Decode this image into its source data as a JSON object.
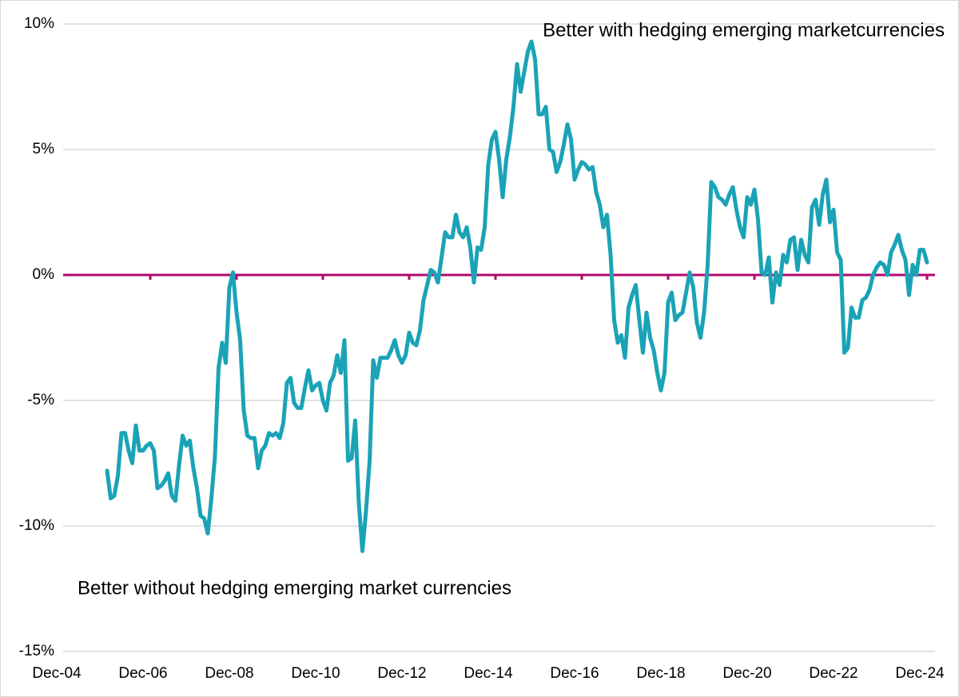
{
  "chart_data": {
    "type": "line",
    "annotations": [
      "Better with hedging emerging marketcurrencies",
      "Better without hedging emerging market currencies"
    ],
    "categories": [
      "Dec-04",
      null,
      null,
      null,
      null,
      null,
      null,
      null,
      null,
      null,
      null,
      null,
      null,
      null,
      null,
      null,
      null,
      null,
      null,
      null,
      null,
      null,
      null,
      null,
      "Dec-06",
      null,
      null,
      null,
      null,
      null,
      null,
      null,
      null,
      null,
      null,
      null,
      null,
      null,
      null,
      null,
      null,
      null,
      null,
      null,
      null,
      null,
      null,
      null,
      "Dec-08",
      null,
      null,
      null,
      null,
      null,
      null,
      null,
      null,
      null,
      null,
      null,
      null,
      null,
      null,
      null,
      null,
      null,
      null,
      null,
      null,
      null,
      null,
      null,
      "Dec-10",
      null,
      null,
      null,
      null,
      null,
      null,
      null,
      null,
      null,
      null,
      null,
      null,
      null,
      null,
      null,
      null,
      null,
      null,
      null,
      null,
      null,
      null,
      null,
      "Dec-12",
      null,
      null,
      null,
      null,
      null,
      null,
      null,
      null,
      null,
      null,
      null,
      null,
      null,
      null,
      null,
      null,
      null,
      null,
      null,
      null,
      null,
      null,
      null,
      "Dec-14",
      null,
      null,
      null,
      null,
      null,
      null,
      null,
      null,
      null,
      null,
      null,
      null,
      null,
      null,
      null,
      null,
      null,
      null,
      null,
      null,
      null,
      null,
      null,
      "Dec-16",
      null,
      null,
      null,
      null,
      null,
      null,
      null,
      null,
      null,
      null,
      null,
      null,
      null,
      null,
      null,
      null,
      null,
      null,
      null,
      null,
      null,
      null,
      null,
      "Dec-18",
      null,
      null,
      null,
      null,
      null,
      null,
      null,
      null,
      null,
      null,
      null,
      null,
      null,
      null,
      null,
      null,
      null,
      null,
      null,
      null,
      null,
      null,
      null,
      "Dec-20",
      null,
      null,
      null,
      null,
      null,
      null,
      null,
      null,
      null,
      null,
      null,
      null,
      null,
      null,
      null,
      null,
      null,
      null,
      null,
      null,
      null,
      null,
      null,
      "Dec-22",
      null,
      null,
      null,
      null,
      null,
      null,
      null,
      null,
      null,
      null,
      null,
      null,
      null,
      null,
      null,
      null,
      null,
      null,
      null,
      null,
      null,
      null,
      null,
      "Dec-24"
    ],
    "values": [
      null,
      null,
      null,
      null,
      null,
      null,
      null,
      null,
      null,
      null,
      null,
      null,
      -7.8,
      -8.9,
      -8.8,
      -8.0,
      -6.3,
      -6.3,
      -7.0,
      -7.5,
      -6.0,
      -7.0,
      -7.0,
      -6.8,
      -6.7,
      -7.0,
      -8.5,
      -8.4,
      -8.2,
      -7.9,
      -8.8,
      -9.0,
      -7.6,
      -6.4,
      -6.8,
      -6.6,
      -7.7,
      -8.5,
      -9.6,
      -9.7,
      -10.3,
      -8.9,
      -7.2,
      -3.7,
      -2.7,
      -3.5,
      -0.5,
      0.1,
      -1.5,
      -2.6,
      -5.4,
      -6.4,
      -6.5,
      -6.5,
      -7.7,
      -7.0,
      -6.8,
      -6.3,
      -6.4,
      -6.3,
      -6.5,
      -5.9,
      -4.3,
      -4.1,
      -5.1,
      -5.3,
      -5.3,
      -4.5,
      -3.8,
      -4.6,
      -4.4,
      -4.3,
      -5.0,
      -5.4,
      -4.3,
      -4.0,
      -3.2,
      -3.9,
      -2.6,
      -7.4,
      -7.3,
      -5.8,
      -9.1,
      -11.0,
      -9.4,
      -7.4,
      -3.4,
      -4.1,
      -3.3,
      -3.3,
      -3.3,
      -3.0,
      -2.6,
      -3.2,
      -3.5,
      -3.2,
      -2.3,
      -2.7,
      -2.8,
      -2.2,
      -1.0,
      -0.4,
      0.2,
      0.1,
      -0.3,
      0.7,
      1.7,
      1.5,
      1.5,
      2.4,
      1.7,
      1.5,
      1.9,
      1.1,
      -0.3,
      1.1,
      1.0,
      1.9,
      4.4,
      5.4,
      5.7,
      4.6,
      3.1,
      4.6,
      5.5,
      6.7,
      8.4,
      7.3,
      8.1,
      8.9,
      9.3,
      8.6,
      6.4,
      6.4,
      6.7,
      5.0,
      4.9,
      4.1,
      4.5,
      5.2,
      6.0,
      5.4,
      3.8,
      4.2,
      4.5,
      4.4,
      4.2,
      4.3,
      3.3,
      2.8,
      1.9,
      2.4,
      0.8,
      -1.8,
      -2.7,
      -2.4,
      -3.3,
      -1.3,
      -0.8,
      -0.4,
      -1.8,
      -3.1,
      -1.5,
      -2.5,
      -3.0,
      -3.9,
      -4.6,
      -3.9,
      -1.1,
      -0.7,
      -1.8,
      -1.6,
      -1.5,
      -0.7,
      0.1,
      -0.5,
      -1.9,
      -2.5,
      -1.5,
      0.4,
      3.7,
      3.5,
      3.1,
      3.0,
      2.8,
      3.2,
      3.5,
      2.6,
      1.9,
      1.5,
      3.1,
      2.8,
      3.4,
      2.2,
      0.1,
      0.0,
      0.7,
      -1.1,
      0.1,
      -0.4,
      0.8,
      0.5,
      1.4,
      1.5,
      0.2,
      1.4,
      0.8,
      0.5,
      2.7,
      3.0,
      2.0,
      3.2,
      3.8,
      2.1,
      2.6,
      0.9,
      0.6,
      -3.1,
      -2.9,
      -1.3,
      -1.7,
      -1.7,
      -1.0,
      -0.9,
      -0.6,
      0.0,
      0.3,
      0.5,
      0.4,
      0.0,
      0.9,
      1.2,
      1.6,
      1.0,
      0.6,
      -0.8,
      0.4,
      0.0,
      1.0,
      1.0,
      0.5
    ],
    "color": "#1aa3b6",
    "ylim": [
      -15,
      10
    ],
    "yticks": [
      {
        "value": -15,
        "label": "-15%"
      },
      {
        "value": -10,
        "label": "-10%"
      },
      {
        "value": -5,
        "label": "-5%"
      },
      {
        "value": 0,
        "label": "0%"
      },
      {
        "value": 5,
        "label": "5%"
      },
      {
        "value": 10,
        "label": "10%"
      }
    ],
    "grid": true,
    "zero_line_color": "#b0086e"
  }
}
